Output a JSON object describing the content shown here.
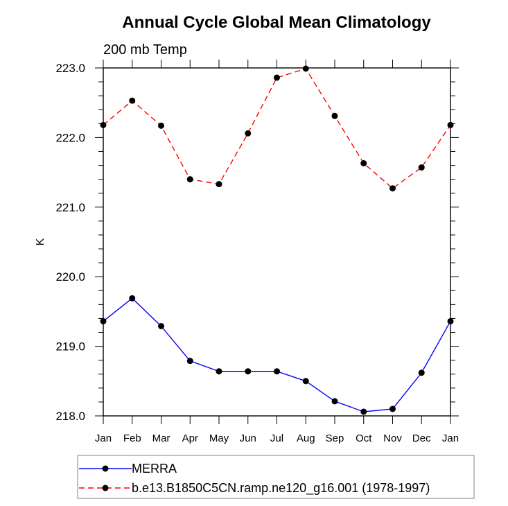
{
  "chart_data": {
    "type": "line",
    "title": "Annual Cycle Global Mean Climatology",
    "subtitle": "200 mb Temp",
    "xlabel": "",
    "ylabel": "K",
    "categories": [
      "Jan",
      "Feb",
      "Mar",
      "Apr",
      "May",
      "Jun",
      "Jul",
      "Aug",
      "Sep",
      "Oct",
      "Nov",
      "Dec",
      "Jan"
    ],
    "ylim": [
      218.0,
      223.0
    ],
    "yticks": [
      218.0,
      219.0,
      220.0,
      221.0,
      222.0,
      223.0
    ],
    "ytick_labels": [
      "218.0",
      "219.0",
      "220.0",
      "221.0",
      "222.0",
      "223.0"
    ],
    "yminor_step": 0.2,
    "grid": false,
    "legend_position": "bottom",
    "series": [
      {
        "name": "MERRA",
        "color": "#0000ff",
        "line_style": "solid",
        "marker": "filled-circle",
        "values": [
          219.36,
          219.69,
          219.29,
          218.79,
          218.64,
          218.64,
          218.64,
          218.5,
          218.21,
          218.06,
          218.1,
          218.62,
          219.36
        ]
      },
      {
        "name": "b.e13.B1850C5CN.ramp.ne120_g16.001 (1978-1997)",
        "color": "#ff0000",
        "line_style": "dashed",
        "marker": "filled-circle",
        "values": [
          222.18,
          222.53,
          222.17,
          221.4,
          221.33,
          222.06,
          222.86,
          222.99,
          222.31,
          221.63,
          221.27,
          221.57,
          222.18
        ]
      }
    ]
  }
}
